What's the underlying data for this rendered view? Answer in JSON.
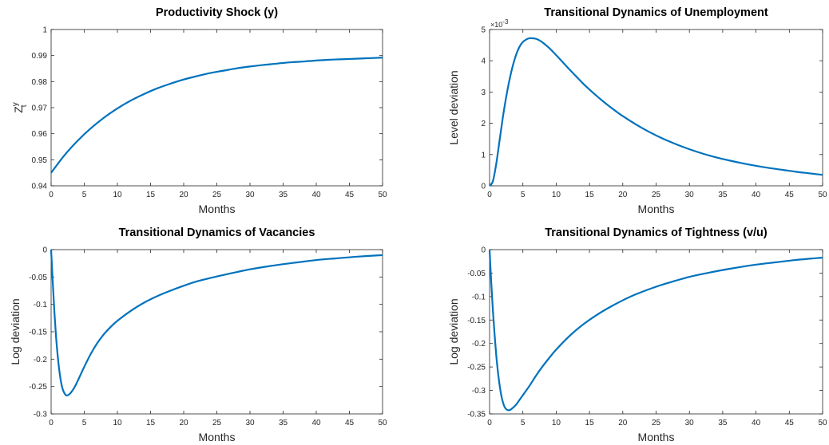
{
  "chart_data": [
    {
      "type": "line",
      "title": "Productivity Shock (y)",
      "xlabel": "Months",
      "ylabel": "Z",
      "ylabel_sup": "y",
      "ylabel_sub": "t",
      "xlim": [
        0,
        50
      ],
      "ylim": [
        0.94,
        1.0
      ],
      "xticks": [
        0,
        5,
        10,
        15,
        20,
        25,
        30,
        35,
        40,
        45,
        50
      ],
      "yticks": [
        0.94,
        0.95,
        0.96,
        0.97,
        0.98,
        0.99,
        1.0
      ],
      "ytick_labels": [
        "0.94",
        "0.95",
        "0.96",
        "0.97",
        "0.98",
        "0.99",
        "1"
      ],
      "color": "#0072BD",
      "x": [
        0,
        2,
        4,
        6,
        8,
        10,
        12,
        14,
        16,
        18,
        20,
        22,
        24,
        26,
        28,
        30,
        32,
        34,
        36,
        38,
        40,
        42,
        44,
        46,
        48,
        50
      ],
      "y": [
        0.945,
        0.9517,
        0.9573,
        0.9621,
        0.9662,
        0.9697,
        0.9727,
        0.9752,
        0.9774,
        0.9792,
        0.9808,
        0.9821,
        0.9833,
        0.9842,
        0.9851,
        0.9858,
        0.9864,
        0.9869,
        0.9874,
        0.9877,
        0.9881,
        0.9884,
        0.9886,
        0.9888,
        0.989,
        0.9892
      ]
    },
    {
      "type": "line",
      "title": "Transitional Dynamics of Unemployment",
      "xlabel": "Months",
      "ylabel": "Level deviation",
      "multiplier": "×10",
      "multiplier_exp": "-3",
      "xlim": [
        0,
        50
      ],
      "ylim": [
        0,
        5
      ],
      "xticks": [
        0,
        5,
        10,
        15,
        20,
        25,
        30,
        35,
        40,
        45,
        50
      ],
      "yticks": [
        0,
        1,
        2,
        3,
        4,
        5
      ],
      "ytick_labels": [
        "0",
        "1",
        "2",
        "3",
        "4",
        "5"
      ],
      "color": "#0072BD",
      "x": [
        0,
        0.5,
        1,
        1.5,
        2,
        2.5,
        3,
        3.5,
        4,
        4.5,
        5,
        5.5,
        6,
        6.5,
        7,
        7.5,
        8,
        9,
        10,
        11,
        12,
        13,
        14,
        15,
        16,
        17,
        18,
        19,
        20,
        22,
        24,
        26,
        28,
        30,
        32,
        34,
        36,
        38,
        40,
        42,
        44,
        46,
        48,
        50
      ],
      "y": [
        0.0,
        0.15,
        0.7,
        1.45,
        2.2,
        2.85,
        3.4,
        3.85,
        4.2,
        4.45,
        4.6,
        4.68,
        4.72,
        4.72,
        4.7,
        4.65,
        4.58,
        4.4,
        4.18,
        3.95,
        3.72,
        3.5,
        3.28,
        3.08,
        2.89,
        2.71,
        2.54,
        2.38,
        2.23,
        1.96,
        1.72,
        1.51,
        1.33,
        1.17,
        1.03,
        0.91,
        0.81,
        0.72,
        0.64,
        0.57,
        0.51,
        0.45,
        0.4,
        0.35
      ]
    },
    {
      "type": "line",
      "title": "Transitional Dynamics of Vacancies",
      "xlabel": "Months",
      "ylabel": "Log deviation",
      "xlim": [
        0,
        50
      ],
      "ylim": [
        -0.3,
        0
      ],
      "xticks": [
        0,
        5,
        10,
        15,
        20,
        25,
        30,
        35,
        40,
        45,
        50
      ],
      "yticks": [
        -0.3,
        -0.25,
        -0.2,
        -0.15,
        -0.1,
        -0.05,
        0
      ],
      "ytick_labels": [
        "-0.3",
        "-0.25",
        "-0.2",
        "-0.15",
        "-0.1",
        "-0.05",
        "0"
      ],
      "color": "#0072BD",
      "x": [
        0,
        0.25,
        0.5,
        0.75,
        1,
        1.25,
        1.5,
        1.75,
        2,
        2.25,
        2.5,
        2.75,
        3,
        3.5,
        4,
        4.5,
        5,
        6,
        7,
        8,
        9,
        10,
        12,
        14,
        16,
        18,
        20,
        22,
        25,
        28,
        30,
        33,
        36,
        40,
        43,
        46,
        50
      ],
      "y": [
        0.0,
        -0.06,
        -0.115,
        -0.16,
        -0.195,
        -0.222,
        -0.242,
        -0.255,
        -0.262,
        -0.266,
        -0.266,
        -0.264,
        -0.261,
        -0.252,
        -0.24,
        -0.227,
        -0.214,
        -0.19,
        -0.17,
        -0.154,
        -0.141,
        -0.13,
        -0.112,
        -0.097,
        -0.085,
        -0.075,
        -0.066,
        -0.058,
        -0.049,
        -0.041,
        -0.036,
        -0.03,
        -0.025,
        -0.019,
        -0.016,
        -0.013,
        -0.01
      ]
    },
    {
      "type": "line",
      "title": "Transitional Dynamics of Tightness (v/u)",
      "xlabel": "Months",
      "ylabel": "Log deviation",
      "xlim": [
        0,
        50
      ],
      "ylim": [
        -0.35,
        0
      ],
      "xticks": [
        0,
        5,
        10,
        15,
        20,
        25,
        30,
        35,
        40,
        45,
        50
      ],
      "yticks": [
        -0.35,
        -0.3,
        -0.25,
        -0.2,
        -0.15,
        -0.1,
        -0.05,
        0
      ],
      "ytick_labels": [
        "-0.35",
        "-0.3",
        "-0.25",
        "-0.2",
        "-0.15",
        "-0.1",
        "-0.05",
        "0"
      ],
      "color": "#0072BD",
      "x": [
        0,
        0.25,
        0.5,
        0.75,
        1,
        1.25,
        1.5,
        1.75,
        2,
        2.25,
        2.5,
        2.75,
        3,
        3.25,
        3.5,
        4,
        4.5,
        5,
        6,
        7,
        8,
        9,
        10,
        12,
        14,
        16,
        18,
        20,
        22,
        25,
        28,
        30,
        33,
        36,
        40,
        43,
        46,
        50
      ],
      "y": [
        0.0,
        -0.07,
        -0.13,
        -0.18,
        -0.225,
        -0.26,
        -0.288,
        -0.31,
        -0.325,
        -0.335,
        -0.34,
        -0.342,
        -0.342,
        -0.34,
        -0.337,
        -0.33,
        -0.32,
        -0.31,
        -0.29,
        -0.268,
        -0.248,
        -0.23,
        -0.213,
        -0.184,
        -0.16,
        -0.14,
        -0.123,
        -0.108,
        -0.095,
        -0.079,
        -0.066,
        -0.058,
        -0.049,
        -0.041,
        -0.032,
        -0.027,
        -0.022,
        -0.017
      ]
    }
  ]
}
